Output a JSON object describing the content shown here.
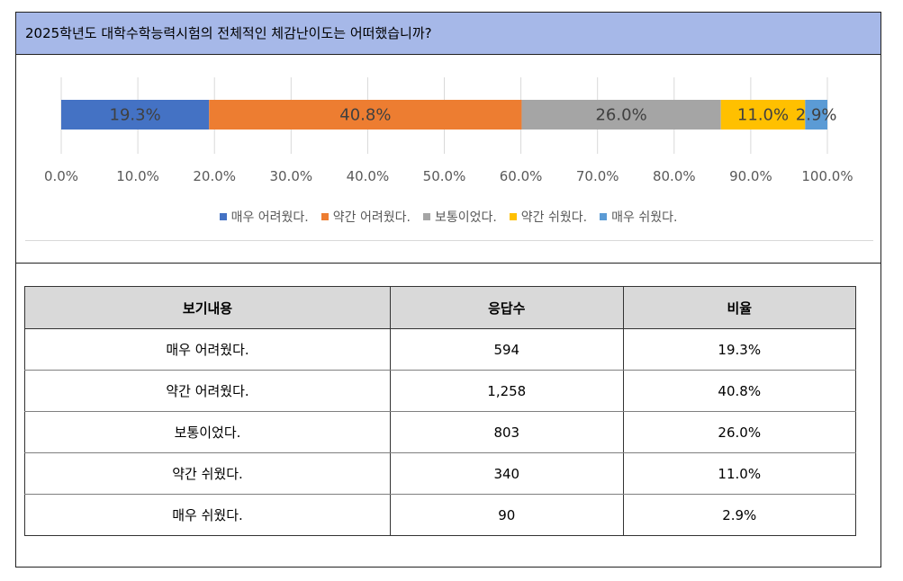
{
  "question": "2025학년도 대학수학능력시험의 전체적인 체감난이도는 어떠했습니까?",
  "chart_data": {
    "type": "bar",
    "orientation": "horizontal-stacked",
    "xlim": [
      0,
      100
    ],
    "x_ticks": [
      "0.0%",
      "10.0%",
      "20.0%",
      "30.0%",
      "40.0%",
      "50.0%",
      "60.0%",
      "70.0%",
      "80.0%",
      "90.0%",
      "100.0%"
    ],
    "grid": true,
    "legend_position": "bottom",
    "series": [
      {
        "name": "매우 어려웠다.",
        "value": 19.3,
        "label": "19.3%",
        "color": "#4472c4",
        "label_color": "#404040"
      },
      {
        "name": "약간 어려웠다.",
        "value": 40.8,
        "label": "40.8%",
        "color": "#ed7d31",
        "label_color": "#404040"
      },
      {
        "name": "보통이었다.",
        "value": 26.0,
        "label": "26.0%",
        "color": "#a5a5a5",
        "label_color": "#404040"
      },
      {
        "name": "약간 쉬웠다.",
        "value": 11.0,
        "label": "11.0%",
        "color": "#ffc000",
        "label_color": "#404040"
      },
      {
        "name": "매우 쉬웠다.",
        "value": 2.9,
        "label": "2.9%",
        "color": "#5b9bd5",
        "label_color": "#404040"
      }
    ]
  },
  "table": {
    "headers": [
      "보기내용",
      "응답수",
      "비율"
    ],
    "rows": [
      [
        "매우 어려웠다.",
        "594",
        "19.3%"
      ],
      [
        "약간 어려웠다.",
        "1,258",
        "40.8%"
      ],
      [
        "보통이었다.",
        "803",
        "26.0%"
      ],
      [
        "약간 쉬웠다.",
        "340",
        "11.0%"
      ],
      [
        "매우 쉬웠다.",
        "90",
        "2.9%"
      ]
    ]
  }
}
